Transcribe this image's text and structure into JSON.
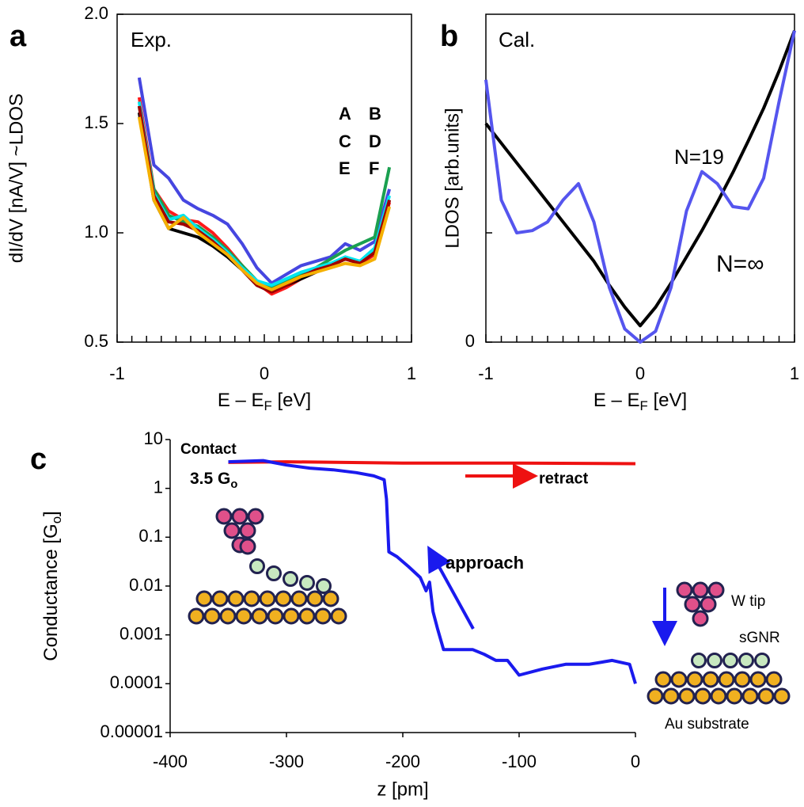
{
  "chart_data": [
    {
      "type": "line",
      "panel": "a",
      "annotations": [
        "Exp."
      ],
      "xlabel": [
        "E – E",
        "F",
        " [eV]"
      ],
      "ylabel": "dI/dV [nA/V] ~LDOS",
      "xlim": [
        -1,
        1
      ],
      "ylim": [
        0.5,
        2.0
      ],
      "xticks": [
        -1,
        {
          "value": -0.9,
          "label": null
        },
        {
          "value": -0.8,
          "label": null
        },
        {
          "value": -0.7,
          "label": null
        },
        {
          "value": -0.6,
          "label": null
        },
        {
          "value": -0.5,
          "label": null
        },
        {
          "value": -0.4,
          "label": null
        },
        {
          "value": -0.3,
          "label": null
        },
        {
          "value": -0.2,
          "label": null
        },
        {
          "value": -0.1,
          "label": null
        },
        0,
        {
          "value": 0.1,
          "label": null
        },
        {
          "value": 0.2,
          "label": null
        },
        {
          "value": 0.3,
          "label": null
        },
        {
          "value": 0.4,
          "label": null
        },
        {
          "value": 0.5,
          "label": null
        },
        {
          "value": 0.6,
          "label": null
        },
        {
          "value": 0.7,
          "label": null
        },
        {
          "value": 0.8,
          "label": null
        },
        {
          "value": 0.9,
          "label": null
        },
        1
      ],
      "yticks": [
        0.5,
        {
          "value": 1.0,
          "label": "1.0"
        },
        1.5,
        {
          "value": 2.0,
          "label": "2.0"
        }
      ],
      "x": [
        -0.85,
        -0.75,
        -0.65,
        -0.55,
        -0.45,
        -0.35,
        -0.25,
        -0.15,
        -0.05,
        0.05,
        0.15,
        0.25,
        0.35,
        0.45,
        0.55,
        0.65,
        0.75,
        0.85
      ],
      "series": [
        {
          "name": "A",
          "color": "#4646e0",
          "values": [
            1.71,
            1.31,
            1.25,
            1.15,
            1.11,
            1.08,
            1.04,
            0.95,
            0.84,
            0.77,
            0.81,
            0.85,
            0.87,
            0.89,
            0.95,
            0.92,
            0.96,
            1.2
          ]
        },
        {
          "name": "B",
          "color": "#ff1a1a",
          "values": [
            1.62,
            1.2,
            1.1,
            1.06,
            1.05,
            1.0,
            0.93,
            0.85,
            0.77,
            0.72,
            0.75,
            0.79,
            0.82,
            0.85,
            0.88,
            0.86,
            0.9,
            1.14
          ]
        },
        {
          "name": "C",
          "color": "#1aa050",
          "values": [
            1.58,
            1.2,
            1.08,
            1.05,
            1.03,
            0.98,
            0.92,
            0.85,
            0.78,
            0.75,
            0.78,
            0.81,
            0.84,
            0.88,
            0.92,
            0.95,
            0.98,
            1.3
          ]
        },
        {
          "name": "D",
          "color": "#000000",
          "values": [
            1.55,
            1.15,
            1.02,
            1.0,
            0.98,
            0.94,
            0.89,
            0.83,
            0.76,
            0.73,
            0.76,
            0.79,
            0.82,
            0.85,
            0.88,
            0.87,
            0.92,
            1.15
          ]
        },
        {
          "name": "E",
          "color": "#00e5ee",
          "values": [
            1.6,
            1.18,
            1.06,
            1.08,
            1.02,
            0.97,
            0.91,
            0.84,
            0.78,
            0.76,
            0.79,
            0.82,
            0.84,
            0.86,
            0.89,
            0.87,
            0.93,
            1.17
          ]
        },
        {
          "name": "F",
          "color": "#a00000",
          "values": [
            1.58,
            1.17,
            1.05,
            1.04,
            1.01,
            0.96,
            0.9,
            0.83,
            0.76,
            0.73,
            0.76,
            0.8,
            0.83,
            0.85,
            0.88,
            0.86,
            0.91,
            1.15
          ]
        },
        {
          "color": "#f5b000",
          "values": [
            1.53,
            1.15,
            1.02,
            1.07,
            1.0,
            0.95,
            0.9,
            0.83,
            0.77,
            0.74,
            0.77,
            0.8,
            0.82,
            0.84,
            0.86,
            0.85,
            0.88,
            1.12
          ]
        }
      ]
    },
    {
      "type": "line",
      "panel": "b",
      "annotations": [
        "Cal."
      ],
      "xlabel": [
        "E – E",
        "F",
        " [eV]"
      ],
      "ylabel": "LDOS [arb.units]",
      "xlim": [
        -1,
        1
      ],
      "ylim": [
        0,
        3
      ],
      "xticks": [
        -1,
        {
          "value": -0.9,
          "label": null
        },
        {
          "value": -0.8,
          "label": null
        },
        {
          "value": -0.7,
          "label": null
        },
        {
          "value": -0.6,
          "label": null
        },
        {
          "value": -0.5,
          "label": null
        },
        {
          "value": -0.4,
          "label": null
        },
        {
          "value": -0.3,
          "label": null
        },
        {
          "value": -0.2,
          "label": null
        },
        {
          "value": -0.1,
          "label": null
        },
        0,
        {
          "value": 0.1,
          "label": null
        },
        {
          "value": 0.2,
          "label": null
        },
        {
          "value": 0.3,
          "label": null
        },
        {
          "value": 0.4,
          "label": null
        },
        {
          "value": 0.5,
          "label": null
        },
        {
          "value": 0.6,
          "label": null
        },
        {
          "value": 0.7,
          "label": null
        },
        {
          "value": 0.8,
          "label": null
        },
        {
          "value": 0.9,
          "label": null
        },
        1
      ],
      "yticks": [
        0,
        {
          "value": 1,
          "label": null
        }
      ],
      "x": [
        -1,
        -0.9,
        -0.8,
        -0.7,
        -0.6,
        -0.5,
        -0.4,
        -0.3,
        -0.2,
        -0.1,
        0,
        0.1,
        0.2,
        0.3,
        0.4,
        0.5,
        0.6,
        0.7,
        0.8,
        0.9,
        1
      ],
      "series": [
        {
          "name": "N=∞",
          "color": "#000000",
          "values": [
            2.0,
            1.82,
            1.64,
            1.46,
            1.28,
            1.1,
            0.92,
            0.74,
            0.52,
            0.32,
            0.15,
            0.32,
            0.54,
            0.78,
            1.02,
            1.28,
            1.55,
            1.84,
            2.14,
            2.48,
            2.85
          ]
        },
        {
          "name": "N=19",
          "color": "#5555ee",
          "values": [
            2.4,
            1.3,
            1.0,
            1.02,
            1.1,
            1.3,
            1.45,
            1.1,
            0.5,
            0.12,
            0.0,
            0.1,
            0.5,
            1.2,
            1.56,
            1.45,
            1.24,
            1.22,
            1.5,
            2.2,
            2.85
          ]
        }
      ]
    },
    {
      "type": "line",
      "panel": "c",
      "log_y": true,
      "annotations": [
        "Contact",
        [
          "3.5 G",
          "o"
        ],
        "W tip",
        "sGNR",
        "Au substrate"
      ],
      "xlabel": "z [pm]",
      "ylabel": [
        "Conductance [G",
        "o",
        "]"
      ],
      "xlim": [
        -400,
        0
      ],
      "ylim": [
        1e-05,
        10
      ],
      "xticks": [
        -400,
        -300,
        -200,
        -100,
        0
      ],
      "yticks": [
        10,
        1,
        0.1,
        0.01,
        0.001,
        0.0001,
        1e-05
      ],
      "series": [
        {
          "name": "retract",
          "color": "#ee1111",
          "x": [
            -350,
            -300,
            -200,
            -100,
            0
          ],
          "values": [
            3.4,
            3.5,
            3.3,
            3.3,
            3.2
          ]
        },
        {
          "name": "approach",
          "color": "#1a1aee",
          "x": [
            -350,
            -320,
            -300,
            -280,
            -260,
            -240,
            -225,
            -216,
            -214,
            -212,
            -205,
            -195,
            -185,
            -180,
            -177,
            -174,
            -170,
            -165,
            -160,
            -150,
            -140,
            -130,
            -120,
            -110,
            -100,
            -80,
            -60,
            -40,
            -20,
            -5,
            0
          ],
          "values": [
            3.5,
            3.7,
            3.0,
            2.6,
            2.4,
            2.1,
            1.8,
            1.5,
            0.6,
            0.05,
            0.04,
            0.025,
            0.015,
            0.008,
            0.012,
            0.003,
            0.0013,
            0.0005,
            0.0005,
            0.0005,
            0.0005,
            0.0004,
            0.0003,
            0.0003,
            0.00015,
            0.0002,
            0.00025,
            0.00025,
            0.0003,
            0.00025,
            0.0001
          ]
        }
      ]
    }
  ]
}
